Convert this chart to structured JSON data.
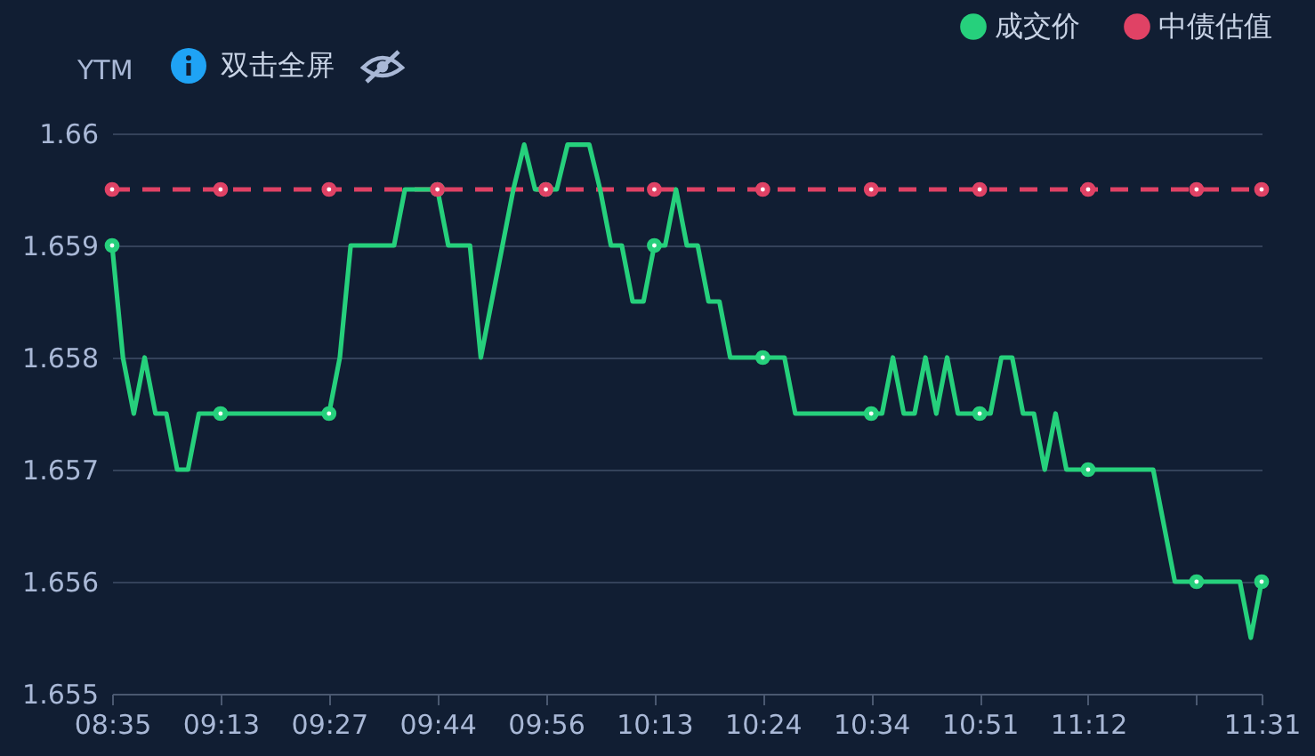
{
  "chart_data": {
    "type": "line",
    "ylabel": "YTM",
    "annotations": [
      "双击全屏"
    ],
    "categories": [
      "08:35",
      null,
      null,
      null,
      null,
      null,
      null,
      null,
      null,
      null,
      "09:13",
      null,
      null,
      null,
      null,
      null,
      null,
      null,
      null,
      null,
      "09:27",
      null,
      null,
      null,
      null,
      null,
      null,
      null,
      null,
      null,
      "09:44",
      null,
      null,
      null,
      null,
      null,
      null,
      null,
      null,
      null,
      "09:56",
      null,
      null,
      null,
      null,
      null,
      null,
      null,
      null,
      null,
      "10:13",
      null,
      null,
      null,
      null,
      null,
      null,
      null,
      null,
      null,
      "10:24",
      null,
      null,
      null,
      null,
      null,
      null,
      null,
      null,
      null,
      "10:34",
      null,
      null,
      null,
      null,
      null,
      null,
      null,
      null,
      null,
      "10:51",
      null,
      null,
      null,
      null,
      null,
      null,
      null,
      null,
      null,
      "11:12",
      null,
      null,
      null,
      null,
      null,
      null,
      null,
      null,
      null,
      null,
      null,
      null,
      null,
      null,
      null,
      "11:31"
    ],
    "series": [
      {
        "name": "成交价",
        "color": "#26d07c",
        "line_style": "solid",
        "values": [
          1.659,
          1.658,
          1.6575,
          1.658,
          1.6575,
          1.6575,
          1.657,
          1.657,
          1.6575,
          1.6575,
          1.6575,
          1.6575,
          1.6575,
          1.6575,
          1.6575,
          1.6575,
          1.6575,
          1.6575,
          1.6575,
          1.6575,
          1.6575,
          1.658,
          1.659,
          1.659,
          1.659,
          1.659,
          1.659,
          1.6595,
          1.6595,
          1.6595,
          1.6595,
          1.659,
          1.659,
          1.659,
          1.658,
          1.6585,
          1.659,
          1.6595,
          1.6599,
          1.6595,
          1.6595,
          1.6595,
          1.6599,
          1.6599,
          1.6599,
          1.6595,
          1.659,
          1.659,
          1.6585,
          1.6585,
          1.659,
          1.659,
          1.6595,
          1.659,
          1.659,
          1.6585,
          1.6585,
          1.658,
          1.658,
          1.658,
          1.658,
          1.658,
          1.658,
          1.6575,
          1.6575,
          1.6575,
          1.6575,
          1.6575,
          1.6575,
          1.6575,
          1.6575,
          1.6575,
          1.658,
          1.6575,
          1.6575,
          1.658,
          1.6575,
          1.658,
          1.6575,
          1.6575,
          1.6575,
          1.6575,
          1.658,
          1.658,
          1.6575,
          1.6575,
          1.657,
          1.6575,
          1.657,
          1.657,
          1.657,
          1.657,
          1.657,
          1.657,
          1.657,
          1.657,
          1.657,
          1.6565,
          1.656,
          1.656,
          1.656,
          1.656,
          1.656,
          1.656,
          1.656,
          1.6555,
          1.656
        ]
      },
      {
        "name": "中债估值",
        "color": "#e04265",
        "line_style": "dashed",
        "values": [
          1.6595,
          1.6595,
          1.6595,
          1.6595,
          1.6595,
          1.6595,
          1.6595,
          1.6595,
          1.6595,
          1.6595,
          1.6595,
          1.6595,
          1.6595,
          1.6595,
          1.6595,
          1.6595,
          1.6595,
          1.6595,
          1.6595,
          1.6595,
          1.6595,
          1.6595,
          1.6595,
          1.6595,
          1.6595,
          1.6595,
          1.6595,
          1.6595,
          1.6595,
          1.6595,
          1.6595,
          1.6595,
          1.6595,
          1.6595,
          1.6595,
          1.6595,
          1.6595,
          1.6595,
          1.6595,
          1.6595,
          1.6595,
          1.6595,
          1.6595,
          1.6595,
          1.6595,
          1.6595,
          1.6595,
          1.6595,
          1.6595,
          1.6595,
          1.6595,
          1.6595,
          1.6595,
          1.6595,
          1.6595,
          1.6595,
          1.6595,
          1.6595,
          1.6595,
          1.6595,
          1.6595,
          1.6595,
          1.6595,
          1.6595,
          1.6595,
          1.6595,
          1.6595,
          1.6595,
          1.6595,
          1.6595,
          1.6595,
          1.6595,
          1.6595,
          1.6595,
          1.6595,
          1.6595,
          1.6595,
          1.6595,
          1.6595,
          1.6595,
          1.6595,
          1.6595,
          1.6595,
          1.6595,
          1.6595,
          1.6595,
          1.6595,
          1.6595,
          1.6595,
          1.6595,
          1.6595,
          1.6595,
          1.6595,
          1.6595,
          1.6595,
          1.6595,
          1.6595,
          1.6595,
          1.6595,
          1.6595,
          1.6595,
          1.6595,
          1.6595,
          1.6595,
          1.6595,
          1.6595,
          1.6595
        ]
      }
    ],
    "ylim": [
      1.655,
      1.66
    ],
    "yticks": [
      1.655,
      1.656,
      1.657,
      1.658,
      1.659,
      1.66
    ],
    "grid": "y",
    "legend": "top right"
  }
}
